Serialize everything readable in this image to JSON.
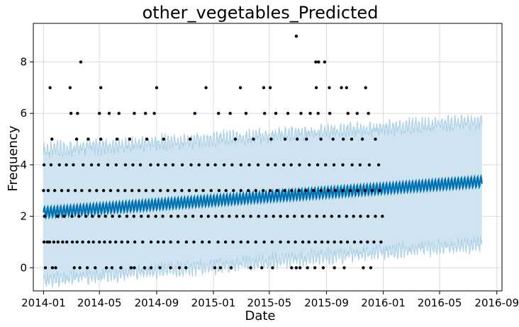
{
  "chart_data": {
    "type": "scatter",
    "title": "other_vegetables_Predicted",
    "xlabel": "Date",
    "ylabel": "Frequency",
    "xlim": [
      "2013-12-10",
      "2016-09-12"
    ],
    "ylim": [
      -0.9,
      9.5
    ],
    "grid": true,
    "x_ticks": [
      "2014-01",
      "2014-05",
      "2014-09",
      "2015-01",
      "2015-05",
      "2015-09",
      "2016-01",
      "2016-05",
      "2016-09"
    ],
    "y_ticks": [
      0,
      2,
      4,
      6,
      8
    ],
    "observed_range": [
      "2014-01-01",
      "2015-12-31"
    ],
    "forecast_range": [
      "2014-01-01",
      "2016-07-31"
    ],
    "trend": {
      "start": {
        "x": "2014-01-01",
        "y": 2.15
      },
      "end": {
        "x": "2016-07-31",
        "y": 3.35
      },
      "weekly_amplitude": 0.2
    },
    "uncertainty_band": {
      "start": {
        "x": "2014-01-01",
        "lower": -0.3,
        "upper": 4.4
      },
      "end": {
        "x": "2016-07-31",
        "lower": 1.1,
        "upper": 5.5
      }
    },
    "colors": {
      "observed": "#000000",
      "forecast": "#0072B2",
      "band_fill": "#cfe3f0",
      "band_line": "#a9cfe6",
      "grid": "#dcdcdc",
      "axis": "#000000"
    },
    "observed_levels": [
      {
        "value": 0,
        "dates": [
          "2014-01-05",
          "2014-01-20",
          "2014-01-27",
          "2014-03-08",
          "2014-03-20",
          "2014-04-05",
          "2014-04-22",
          "2014-05-16",
          "2014-05-28",
          "2014-06-16",
          "2014-07-08",
          "2014-07-15",
          "2014-08-06",
          "2014-08-20",
          "2014-09-08",
          "2014-10-01",
          "2014-10-20",
          "2014-11-03",
          "2015-01-04",
          "2015-01-16",
          "2015-02-08",
          "2015-03-22",
          "2015-04-15",
          "2015-05-08",
          "2015-06-18",
          "2015-06-28",
          "2015-07-06",
          "2015-07-22",
          "2015-08-07",
          "2015-08-25",
          "2015-09-18",
          "2015-10-09",
          "2015-11-19",
          "2015-12-05"
        ]
      },
      {
        "value": 1,
        "dates": [
          "2014-01-02",
          "2014-01-09",
          "2014-01-14",
          "2014-01-23",
          "2014-02-01",
          "2014-02-11",
          "2014-02-20",
          "2014-03-04",
          "2014-03-14",
          "2014-03-26",
          "2014-04-08",
          "2014-04-18",
          "2014-05-01",
          "2014-05-12",
          "2014-05-24",
          "2014-06-05",
          "2014-06-18",
          "2014-07-01",
          "2014-07-16",
          "2014-08-02",
          "2014-08-20",
          "2014-09-04",
          "2014-09-16",
          "2014-10-01",
          "2014-10-17",
          "2014-11-04",
          "2014-11-20",
          "2014-12-08",
          "2014-12-23",
          "2015-01-11",
          "2015-01-27",
          "2015-02-12",
          "2015-03-01",
          "2015-03-16",
          "2015-04-02",
          "2015-04-20",
          "2015-05-07",
          "2015-05-25",
          "2015-06-11",
          "2015-06-26",
          "2015-07-12",
          "2015-07-25",
          "2015-08-08",
          "2015-08-22",
          "2015-09-04",
          "2015-09-18",
          "2015-10-02",
          "2015-10-16",
          "2015-10-31",
          "2015-11-14",
          "2015-11-28",
          "2015-12-12",
          "2015-12-27"
        ]
      },
      {
        "value": 2,
        "dates": [
          "2014-01-03",
          "2014-01-31",
          "2014-02-14",
          "2014-03-03",
          "2014-03-18",
          "2014-04-02",
          "2014-04-16",
          "2014-04-30",
          "2014-05-14",
          "2014-05-29",
          "2014-06-13",
          "2014-06-29",
          "2014-07-14",
          "2014-07-30",
          "2014-08-14",
          "2014-08-30",
          "2014-09-14",
          "2014-10-02",
          "2014-10-17",
          "2014-11-02",
          "2014-11-18",
          "2014-12-06",
          "2014-12-21",
          "2015-01-06",
          "2015-01-20",
          "2015-02-04",
          "2015-02-20",
          "2015-03-06",
          "2015-03-22",
          "2015-04-08",
          "2015-04-24",
          "2015-05-10",
          "2015-05-25",
          "2015-06-09",
          "2015-06-24",
          "2015-07-11",
          "2015-07-26",
          "2015-08-11",
          "2015-08-27",
          "2015-09-12",
          "2015-09-28",
          "2015-10-14",
          "2015-10-29",
          "2015-11-13",
          "2015-11-29",
          "2015-12-15",
          "2015-12-30"
        ]
      },
      {
        "value": 3,
        "dates": [
          "2014-01-01",
          "2014-01-11",
          "2014-01-25",
          "2014-02-09",
          "2014-02-23",
          "2014-03-10",
          "2014-03-24",
          "2014-04-10",
          "2014-04-25",
          "2014-05-10",
          "2014-05-25",
          "2014-06-10",
          "2014-06-25",
          "2014-07-10",
          "2014-07-25",
          "2014-08-09",
          "2014-08-24",
          "2014-09-09",
          "2014-09-25",
          "2014-10-10",
          "2014-10-25",
          "2014-11-10",
          "2014-11-25",
          "2014-12-10",
          "2014-12-27",
          "2015-01-13",
          "2015-01-28",
          "2015-02-13",
          "2015-03-01",
          "2015-03-17",
          "2015-04-02",
          "2015-04-18",
          "2015-05-03",
          "2015-05-18",
          "2015-06-03",
          "2015-06-18",
          "2015-07-04",
          "2015-07-19",
          "2015-08-04",
          "2015-08-20",
          "2015-09-05",
          "2015-09-20",
          "2015-10-06",
          "2015-10-22",
          "2015-11-07",
          "2015-11-23",
          "2015-12-08",
          "2015-12-24"
        ]
      },
      {
        "value": 4,
        "dates": [
          "2014-01-02",
          "2014-01-17",
          "2014-02-04",
          "2014-02-19",
          "2014-03-06",
          "2014-03-27",
          "2014-04-14",
          "2014-04-29",
          "2014-05-19",
          "2014-06-06",
          "2014-06-26",
          "2014-07-12",
          "2014-07-28",
          "2014-08-19",
          "2014-09-04",
          "2014-09-20",
          "2014-10-06",
          "2014-10-26",
          "2014-11-14",
          "2014-12-01",
          "2014-12-20",
          "2015-01-05",
          "2015-01-24",
          "2015-02-10",
          "2015-03-01",
          "2015-03-19",
          "2015-04-07",
          "2015-04-28",
          "2015-05-14",
          "2015-06-01",
          "2015-06-17",
          "2015-07-05",
          "2015-07-26",
          "2015-08-13",
          "2015-08-30",
          "2015-09-17",
          "2015-10-06",
          "2015-10-26",
          "2015-11-12",
          "2015-12-02",
          "2015-12-22"
        ]
      },
      {
        "value": 5,
        "dates": [
          "2014-01-19",
          "2014-03-13",
          "2014-04-07",
          "2014-05-04",
          "2014-06-08",
          "2014-07-05",
          "2014-08-11",
          "2014-09-16",
          "2014-11-12",
          "2015-02-17",
          "2015-03-28",
          "2015-05-05",
          "2015-06-04",
          "2015-06-30",
          "2015-07-20",
          "2015-08-20",
          "2015-09-15",
          "2015-10-07",
          "2015-10-25",
          "2015-11-17",
          "2015-12-15"
        ]
      },
      {
        "value": 6,
        "dates": [
          "2014-03-01",
          "2014-03-15",
          "2014-05-01",
          "2014-05-22",
          "2014-06-12",
          "2014-07-15",
          "2014-08-08",
          "2014-08-27",
          "2014-11-22",
          "2015-01-12",
          "2015-02-06",
          "2015-03-12",
          "2015-04-21",
          "2015-05-15",
          "2015-06-10",
          "2015-07-08",
          "2015-07-28",
          "2015-08-14",
          "2015-09-08",
          "2015-10-17",
          "2015-11-06",
          "2015-11-30"
        ]
      },
      {
        "value": 7,
        "dates": [
          "2014-01-15",
          "2014-02-27",
          "2014-05-04",
          "2014-09-01",
          "2014-12-16",
          "2015-02-28",
          "2015-04-19",
          "2015-05-03",
          "2015-08-10",
          "2015-09-07",
          "2015-10-03",
          "2015-10-14",
          "2015-11-24"
        ]
      },
      {
        "value": 8,
        "dates": [
          "2014-03-22",
          "2015-08-09",
          "2015-08-15",
          "2015-08-28"
        ]
      },
      {
        "value": 9,
        "dates": [
          "2015-06-28"
        ]
      }
    ]
  }
}
